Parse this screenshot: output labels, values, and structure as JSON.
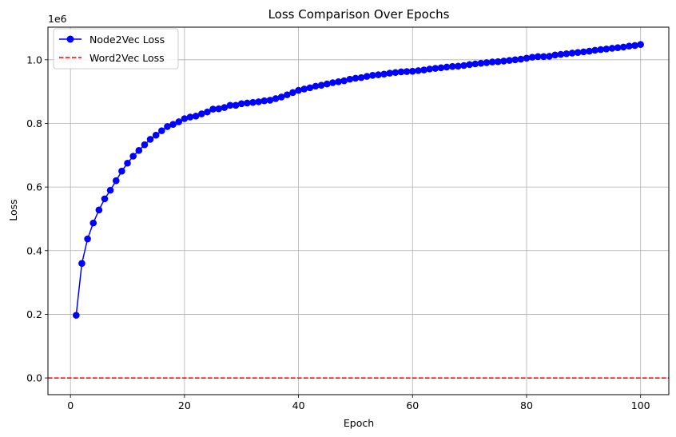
{
  "chart_data": {
    "type": "line",
    "title": "Loss Comparison Over Epochs",
    "xlabel": "Epoch",
    "ylabel": "Loss",
    "y_scale_label": "1e6",
    "xlim": [
      -3.95,
      104.95
    ],
    "ylim": [
      -0.0525,
      1.1025
    ],
    "y_multiplier": 1000000,
    "xticks": [
      0,
      20,
      40,
      60,
      80,
      100
    ],
    "yticks": [
      0.0,
      0.2,
      0.4,
      0.6,
      0.8,
      1.0
    ],
    "ytick_labels": [
      "0.0",
      "0.2",
      "0.4",
      "0.6",
      "0.8",
      "1.0"
    ],
    "grid": true,
    "legend_position": "top-left",
    "series": [
      {
        "name": "Node2Vec Loss",
        "style": "line-with-markers",
        "color": "#0000ff",
        "x": [
          1,
          2,
          3,
          4,
          5,
          6,
          7,
          8,
          9,
          10,
          11,
          12,
          13,
          14,
          15,
          16,
          17,
          18,
          19,
          20,
          21,
          22,
          23,
          24,
          25,
          26,
          27,
          28,
          29,
          30,
          31,
          32,
          33,
          34,
          35,
          36,
          37,
          38,
          39,
          40,
          41,
          42,
          43,
          44,
          45,
          46,
          47,
          48,
          49,
          50,
          51,
          52,
          53,
          54,
          55,
          56,
          57,
          58,
          59,
          60,
          61,
          62,
          63,
          64,
          65,
          66,
          67,
          68,
          69,
          70,
          71,
          72,
          73,
          74,
          75,
          76,
          77,
          78,
          79,
          80,
          81,
          82,
          83,
          84,
          85,
          86,
          87,
          88,
          89,
          90,
          91,
          92,
          93,
          94,
          95,
          96,
          97,
          98,
          99,
          100
        ],
        "y": [
          0.197,
          0.36,
          0.437,
          0.487,
          0.528,
          0.563,
          0.59,
          0.62,
          0.65,
          0.675,
          0.697,
          0.715,
          0.733,
          0.75,
          0.763,
          0.777,
          0.79,
          0.797,
          0.805,
          0.815,
          0.82,
          0.823,
          0.83,
          0.836,
          0.845,
          0.846,
          0.85,
          0.857,
          0.857,
          0.862,
          0.864,
          0.866,
          0.868,
          0.871,
          0.873,
          0.878,
          0.883,
          0.89,
          0.897,
          0.904,
          0.908,
          0.912,
          0.917,
          0.92,
          0.924,
          0.928,
          0.931,
          0.934,
          0.939,
          0.942,
          0.944,
          0.948,
          0.951,
          0.953,
          0.955,
          0.958,
          0.96,
          0.962,
          0.963,
          0.964,
          0.966,
          0.968,
          0.971,
          0.973,
          0.975,
          0.977,
          0.979,
          0.98,
          0.982,
          0.985,
          0.987,
          0.989,
          0.991,
          0.993,
          0.994,
          0.996,
          0.998,
          1.0,
          1.002,
          1.005,
          1.008,
          1.01,
          1.01,
          1.011,
          1.015,
          1.017,
          1.019,
          1.021,
          1.023,
          1.025,
          1.027,
          1.03,
          1.032,
          1.034,
          1.036,
          1.038,
          1.04,
          1.043,
          1.045,
          1.048
        ]
      },
      {
        "name": "Word2Vec Loss",
        "style": "dashed-horizontal",
        "color": "#ff0000",
        "y_constant": 0.0
      }
    ]
  }
}
